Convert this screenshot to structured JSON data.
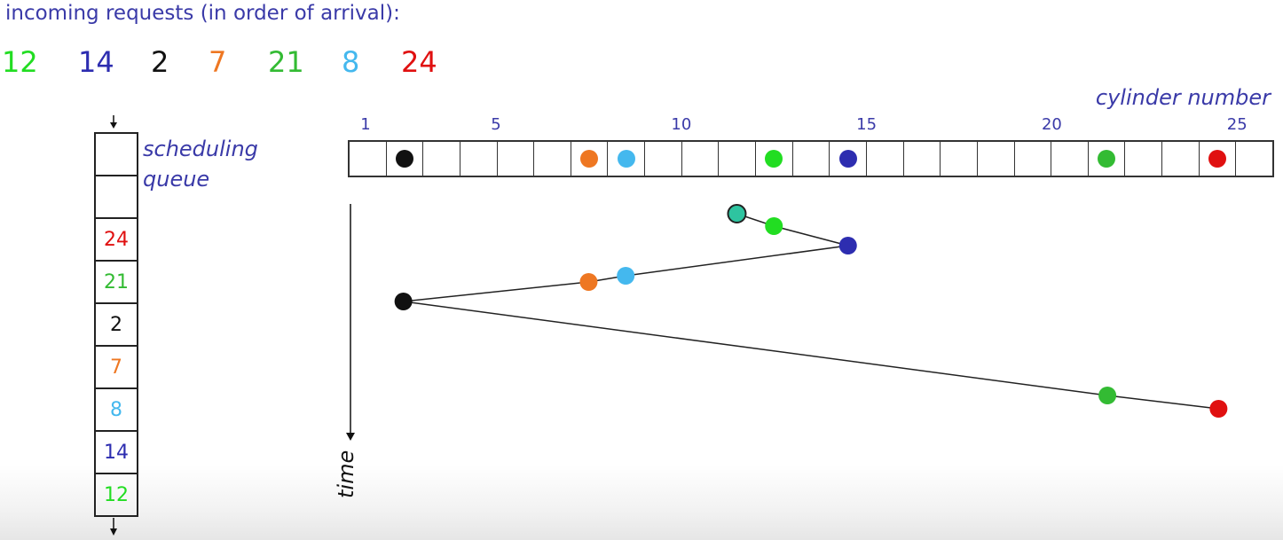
{
  "heading": "incoming requests (in order of arrival):",
  "requests": [
    {
      "value": "12",
      "color": "#22dd22"
    },
    {
      "value": "14",
      "color": "#2d2db0"
    },
    {
      "value": "2",
      "color": "#111111"
    },
    {
      "value": "7",
      "color": "#ee7722"
    },
    {
      "value": "21",
      "color": "#33bb33"
    },
    {
      "value": "8",
      "color": "#44b8ee"
    },
    {
      "value": "24",
      "color": "#e01010"
    }
  ],
  "queue": {
    "label_line1": "scheduling",
    "label_line2": "queue",
    "cells": [
      {
        "value": "",
        "color": "#111111"
      },
      {
        "value": "",
        "color": "#111111"
      },
      {
        "value": "24",
        "color": "#e01010"
      },
      {
        "value": "21",
        "color": "#33bb33"
      },
      {
        "value": "2",
        "color": "#111111"
      },
      {
        "value": "7",
        "color": "#ee7722"
      },
      {
        "value": "8",
        "color": "#44b8ee"
      },
      {
        "value": "14",
        "color": "#2d2db0"
      },
      {
        "value": "12",
        "color": "#22dd22"
      }
    ]
  },
  "cylinders": {
    "title": "cylinder number",
    "count": 25,
    "ticks": [
      "1",
      "5",
      "10",
      "15",
      "20",
      "25"
    ],
    "occupied": [
      {
        "cylinder": 2,
        "color": "#111111"
      },
      {
        "cylinder": 7,
        "color": "#ee7722"
      },
      {
        "cylinder": 8,
        "color": "#44b8ee"
      },
      {
        "cylinder": 12,
        "color": "#22dd22"
      },
      {
        "cylinder": 14,
        "color": "#2d2db0"
      },
      {
        "cylinder": 21,
        "color": "#33bb33"
      },
      {
        "cylinder": 24,
        "color": "#e01010"
      }
    ]
  },
  "time_label": "time",
  "path": {
    "start": {
      "cylinder": 11,
      "color": "#2ec4a0"
    },
    "visits": [
      {
        "cylinder": 12,
        "color": "#22dd22"
      },
      {
        "cylinder": 14,
        "color": "#2d2db0"
      },
      {
        "cylinder": 8,
        "color": "#44b8ee"
      },
      {
        "cylinder": 7,
        "color": "#ee7722"
      },
      {
        "cylinder": 2,
        "color": "#111111"
      },
      {
        "cylinder": 21,
        "color": "#33bb33"
      },
      {
        "cylinder": 24,
        "color": "#e01010"
      }
    ]
  }
}
